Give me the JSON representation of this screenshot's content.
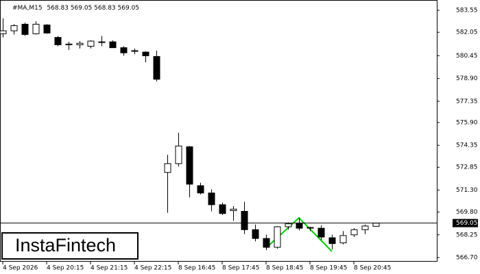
{
  "chart_data": {
    "type": "candlestick",
    "symbol": "#MA,M15",
    "logo": "InstaFintech",
    "x": [
      "4 Sep 2026",
      null,
      null,
      null,
      "4 Sep 20:15",
      null,
      null,
      null,
      "4 Sep 21:15",
      null,
      null,
      null,
      "4 Sep 22:15",
      null,
      null,
      null,
      "8 Sep 16:45",
      null,
      null,
      null,
      "8 Sep 17:45",
      null,
      null,
      null,
      "8 Sep 18:45",
      null,
      null,
      null,
      "8 Sep 19:45",
      null,
      null,
      null,
      "8 Sep 20:45",
      null,
      null
    ],
    "open": [
      581.95,
      582.15,
      582.6,
      581.95,
      582.55,
      581.7,
      581.2,
      581.2,
      581.1,
      581.35,
      581.4,
      581.0,
      580.75,
      580.7,
      580.4,
      572.5,
      573.1,
      574.25,
      571.6,
      571.1,
      570.3,
      569.9,
      569.85,
      568.6,
      568.0,
      567.4,
      568.8,
      569.05,
      568.7,
      568.7,
      568.05,
      567.7,
      568.25,
      568.6,
      568.83
    ],
    "high": [
      583.0,
      582.6,
      582.7,
      582.8,
      582.6,
      581.8,
      581.4,
      581.45,
      581.5,
      581.8,
      581.5,
      581.1,
      580.95,
      580.75,
      580.8,
      573.7,
      575.2,
      574.3,
      571.8,
      571.35,
      570.45,
      570.2,
      570.5,
      568.95,
      568.25,
      568.85,
      569.1,
      569.4,
      568.8,
      568.9,
      568.25,
      568.5,
      568.7,
      568.95,
      569.05
    ],
    "low": [
      581.7,
      581.9,
      581.8,
      581.9,
      581.95,
      581.1,
      580.85,
      580.95,
      580.95,
      581.1,
      581.0,
      580.45,
      580.55,
      580.0,
      578.7,
      569.75,
      572.9,
      570.8,
      571.0,
      569.85,
      569.6,
      569.2,
      568.3,
      567.8,
      567.2,
      567.3,
      568.6,
      568.55,
      568.5,
      567.9,
      567.25,
      567.6,
      568.1,
      568.3,
      568.83
    ],
    "close": [
      582.15,
      582.5,
      581.9,
      582.6,
      582.0,
      581.2,
      581.25,
      581.3,
      581.45,
      581.4,
      581.0,
      580.65,
      580.8,
      580.45,
      578.85,
      573.1,
      574.3,
      571.7,
      571.1,
      570.3,
      569.7,
      570.0,
      568.6,
      568.0,
      567.4,
      568.8,
      569.0,
      568.7,
      568.75,
      568.1,
      567.65,
      568.2,
      568.6,
      568.85,
      569.05
    ],
    "up_color": "#ffffff",
    "down_color": "#000000",
    "ylim": [
      566.42,
      584.25
    ],
    "yticks": [
      583.55,
      582.05,
      580.45,
      {
        "value": 578.9,
        "label": "578.90"
      },
      577.35,
      {
        "value": 575.9,
        "label": "575.90"
      },
      574.35,
      572.85,
      {
        "value": 571.3,
        "label": "571.30"
      },
      {
        "value": 569.8,
        "label": "569.80"
      },
      568.25,
      {
        "value": 566.7,
        "label": "566.70"
      }
    ]
  }
}
